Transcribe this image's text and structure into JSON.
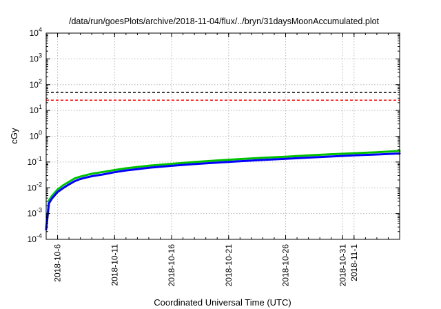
{
  "chart_data": {
    "type": "line",
    "title": "/data/run/goesPlots/archive/2018-11-04/flux/../bryn/31daysMoonAccumulated.plot",
    "xlabel": "Coordinated Universal Time (UTC)",
    "ylabel": "cGy",
    "yscale": "log",
    "xlim": [
      "2018-10-05",
      "2018-11-05"
    ],
    "ylim": [
      0.0001,
      10000
    ],
    "grid": true,
    "yticks": [
      {
        "value": 0.0001,
        "base": "10",
        "exp": "-4"
      },
      {
        "value": 0.001,
        "base": "10",
        "exp": "-3"
      },
      {
        "value": 0.01,
        "base": "10",
        "exp": "-2"
      },
      {
        "value": 0.1,
        "base": "10",
        "exp": "-1"
      },
      {
        "value": 1,
        "base": "10",
        "exp": "0"
      },
      {
        "value": 10,
        "base": "10",
        "exp": "1"
      },
      {
        "value": 100,
        "base": "10",
        "exp": "2"
      },
      {
        "value": 1000,
        "base": "10",
        "exp": "3"
      },
      {
        "value": 10000,
        "base": "10",
        "exp": "4"
      }
    ],
    "xticks": [
      {
        "value": "2018-10-06",
        "label": "2018-10-6"
      },
      {
        "value": "2018-10-11",
        "label": "2018-10-11"
      },
      {
        "value": "2018-10-16",
        "label": "2018-10-16"
      },
      {
        "value": "2018-10-21",
        "label": "2018-10-21"
      },
      {
        "value": "2018-10-26",
        "label": "2018-10-26"
      },
      {
        "value": "2018-10-31",
        "label": "2018-10-31"
      },
      {
        "value": "2018-11-01",
        "label": "2018-11-1"
      }
    ],
    "hlines": [
      {
        "value": 50,
        "color": "#000000",
        "style": "dashed"
      },
      {
        "value": 25,
        "color": "#ff0000",
        "style": "dashed"
      }
    ],
    "series": [
      {
        "color": "#00c000",
        "x": [
          "2018-10-05 00:00",
          "2018-10-05 06:00",
          "2018-10-05 12:00",
          "2018-10-06 00:00",
          "2018-10-06 12:00",
          "2018-10-07 00:00",
          "2018-10-07 12:00",
          "2018-10-08 00:00",
          "2018-10-08 12:00",
          "2018-10-09 00:00",
          "2018-10-10 00:00",
          "2018-10-11 00:00",
          "2018-10-12 00:00",
          "2018-10-13 00:00",
          "2018-10-14 00:00",
          "2018-10-16 00:00",
          "2018-10-18 00:00",
          "2018-10-20 00:00",
          "2018-10-22 00:00",
          "2018-10-24 00:00",
          "2018-10-26 00:00",
          "2018-10-28 00:00",
          "2018-10-30 00:00",
          "2018-11-01 00:00",
          "2018-11-03 00:00",
          "2018-11-05 00:00"
        ],
        "values": [
          0.00028,
          0.0032,
          0.0048,
          0.0085,
          0.0125,
          0.017,
          0.023,
          0.027,
          0.031,
          0.035,
          0.041,
          0.049,
          0.057,
          0.064,
          0.072,
          0.085,
          0.1,
          0.115,
          0.13,
          0.145,
          0.16,
          0.18,
          0.2,
          0.22,
          0.24,
          0.27
        ]
      },
      {
        "color": "#0000ff",
        "x": [
          "2018-10-05 00:00",
          "2018-10-05 06:00",
          "2018-10-05 12:00",
          "2018-10-06 00:00",
          "2018-10-06 12:00",
          "2018-10-07 00:00",
          "2018-10-07 12:00",
          "2018-10-08 00:00",
          "2018-10-08 12:00",
          "2018-10-09 00:00",
          "2018-10-10 00:00",
          "2018-10-11 00:00",
          "2018-10-12 00:00",
          "2018-10-13 00:00",
          "2018-10-14 00:00",
          "2018-10-16 00:00",
          "2018-10-18 00:00",
          "2018-10-20 00:00",
          "2018-10-22 00:00",
          "2018-10-24 00:00",
          "2018-10-26 00:00",
          "2018-10-28 00:00",
          "2018-10-30 00:00",
          "2018-11-01 00:00",
          "2018-11-03 00:00",
          "2018-11-05 00:00"
        ],
        "values": [
          0.00024,
          0.0025,
          0.0038,
          0.0068,
          0.0098,
          0.0135,
          0.018,
          0.022,
          0.025,
          0.028,
          0.033,
          0.04,
          0.047,
          0.053,
          0.06,
          0.071,
          0.083,
          0.095,
          0.107,
          0.12,
          0.133,
          0.148,
          0.163,
          0.18,
          0.196,
          0.215
        ]
      }
    ]
  }
}
